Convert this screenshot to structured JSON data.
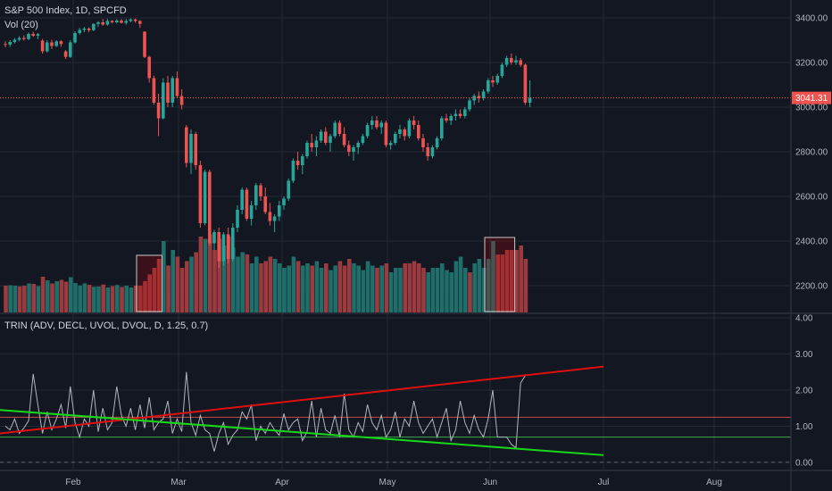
{
  "header": {
    "title": "S&P 500 Index, 1D, SPCFD",
    "vol_label": "Vol (20)"
  },
  "trin_header": "TRIN (ADV, DECL, UVOL, DVOL, D, 1.25, 0.7)",
  "last_price": "3041.31",
  "colors": {
    "up": "#26a69a",
    "down": "#ef5350",
    "up_vol": "#1f6e6a",
    "down_vol": "#9c3b3f",
    "grid": "#242832",
    "trin_line": "#b2b5be",
    "red_trend": "#e00f0f",
    "green_trend": "#18d918"
  },
  "chart_data": [
    {
      "type": "candlestick",
      "title": "S&P 500 Index, 1D, SPCFD",
      "x_ticks": [
        "Feb",
        "Mar",
        "Apr",
        "May",
        "Jun",
        "Jul",
        "Aug"
      ],
      "y_ticks": [
        "2200.00",
        "2400.00",
        "2600.00",
        "2800.00",
        "3000.00",
        "3200.00",
        "3400.00"
      ],
      "ylim": [
        2080,
        3480
      ],
      "last_price": 3041.31,
      "ohlc": [
        [
          3283,
          3295,
          3268,
          3280
        ],
        [
          3280,
          3300,
          3270,
          3292
        ],
        [
          3292,
          3310,
          3285,
          3302
        ],
        [
          3302,
          3318,
          3295,
          3310
        ],
        [
          3310,
          3322,
          3298,
          3305
        ],
        [
          3305,
          3335,
          3300,
          3328
        ],
        [
          3328,
          3338,
          3315,
          3320
        ],
        [
          3320,
          3332,
          3305,
          3327
        ],
        [
          3298,
          3305,
          3240,
          3250
        ],
        [
          3250,
          3300,
          3245,
          3290
        ],
        [
          3290,
          3302,
          3260,
          3274
        ],
        [
          3274,
          3300,
          3270,
          3295
        ],
        [
          3295,
          3300,
          3270,
          3283
        ],
        [
          3250,
          3255,
          3215,
          3225
        ],
        [
          3225,
          3300,
          3220,
          3290
        ],
        [
          3290,
          3340,
          3285,
          3332
        ],
        [
          3332,
          3355,
          3325,
          3346
        ],
        [
          3346,
          3360,
          3335,
          3352
        ],
        [
          3352,
          3358,
          3335,
          3345
        ],
        [
          3345,
          3375,
          3340,
          3373
        ],
        [
          3373,
          3385,
          3360,
          3380
        ],
        [
          3380,
          3395,
          3365,
          3370
        ],
        [
          3370,
          3395,
          3365,
          3386
        ],
        [
          3386,
          3390,
          3375,
          3380
        ],
        [
          3380,
          3395,
          3375,
          3388
        ],
        [
          3388,
          3395,
          3375,
          3378
        ],
        [
          3378,
          3395,
          3370,
          3386
        ],
        [
          3386,
          3398,
          3380,
          3393
        ],
        [
          3393,
          3397,
          3378,
          3386
        ],
        [
          3386,
          3390,
          3355,
          3373
        ],
        [
          3338,
          3340,
          3220,
          3225
        ],
        [
          3225,
          3230,
          3110,
          3130
        ],
        [
          3130,
          3140,
          3010,
          3020
        ],
        [
          3020,
          3060,
          2870,
          2950
        ],
        [
          2950,
          3130,
          2945,
          3110
        ],
        [
          3110,
          3140,
          3000,
          3020
        ],
        [
          3020,
          3140,
          3000,
          3130
        ],
        [
          3130,
          3160,
          3040,
          3050
        ],
        [
          3050,
          3080,
          2990,
          3010
        ],
        [
          2910,
          2920,
          2730,
          2750
        ],
        [
          2750,
          2900,
          2700,
          2880
        ],
        [
          2880,
          2890,
          2720,
          2740
        ],
        [
          2740,
          2760,
          2460,
          2480
        ],
        [
          2480,
          2720,
          2470,
          2710
        ],
        [
          2710,
          2720,
          2380,
          2390
        ],
        [
          2390,
          2450,
          2360,
          2440
        ],
        [
          2440,
          2460,
          2280,
          2310
        ],
        [
          2310,
          2440,
          2290,
          2430
        ],
        [
          2430,
          2460,
          2300,
          2320
        ],
        [
          2320,
          2480,
          2310,
          2460
        ],
        [
          2460,
          2560,
          2440,
          2540
        ],
        [
          2540,
          2640,
          2520,
          2630
        ],
        [
          2630,
          2640,
          2490,
          2500
        ],
        [
          2500,
          2580,
          2470,
          2560
        ],
        [
          2560,
          2660,
          2540,
          2650
        ],
        [
          2650,
          2660,
          2580,
          2600
        ],
        [
          2600,
          2640,
          2520,
          2530
        ],
        [
          2530,
          2570,
          2470,
          2490
        ],
        [
          2490,
          2520,
          2440,
          2510
        ],
        [
          2510,
          2580,
          2490,
          2560
        ],
        [
          2560,
          2600,
          2540,
          2590
        ],
        [
          2590,
          2680,
          2580,
          2670
        ],
        [
          2670,
          2770,
          2660,
          2760
        ],
        [
          2760,
          2800,
          2720,
          2740
        ],
        [
          2740,
          2790,
          2700,
          2780
        ],
        [
          2780,
          2850,
          2770,
          2840
        ],
        [
          2840,
          2880,
          2800,
          2820
        ],
        [
          2820,
          2870,
          2780,
          2850
        ],
        [
          2850,
          2900,
          2840,
          2890
        ],
        [
          2890,
          2910,
          2830,
          2840
        ],
        [
          2840,
          2880,
          2800,
          2870
        ],
        [
          2870,
          2940,
          2860,
          2930
        ],
        [
          2930,
          2940,
          2870,
          2880
        ],
        [
          2880,
          2910,
          2820,
          2830
        ],
        [
          2830,
          2850,
          2780,
          2800
        ],
        [
          2800,
          2830,
          2760,
          2820
        ],
        [
          2820,
          2850,
          2790,
          2840
        ],
        [
          2840,
          2880,
          2830,
          2870
        ],
        [
          2870,
          2930,
          2860,
          2920
        ],
        [
          2920,
          2960,
          2900,
          2940
        ],
        [
          2940,
          2960,
          2900,
          2910
        ],
        [
          2910,
          2940,
          2880,
          2930
        ],
        [
          2930,
          2940,
          2820,
          2830
        ],
        [
          2830,
          2850,
          2810,
          2840
        ],
        [
          2840,
          2890,
          2830,
          2880
        ],
        [
          2880,
          2920,
          2860,
          2900
        ],
        [
          2900,
          2910,
          2850,
          2870
        ],
        [
          2870,
          2950,
          2860,
          2940
        ],
        [
          2940,
          2960,
          2900,
          2920
        ],
        [
          2920,
          2940,
          2850,
          2860
        ],
        [
          2860,
          2880,
          2800,
          2820
        ],
        [
          2820,
          2840,
          2760,
          2780
        ],
        [
          2780,
          2830,
          2770,
          2820
        ],
        [
          2820,
          2870,
          2810,
          2860
        ],
        [
          2860,
          2960,
          2850,
          2950
        ],
        [
          2950,
          2970,
          2930,
          2940
        ],
        [
          2940,
          2970,
          2920,
          2960
        ],
        [
          2960,
          2990,
          2940,
          2970
        ],
        [
          2970,
          2990,
          2950,
          2960
        ],
        [
          2960,
          3000,
          2950,
          2990
        ],
        [
          2990,
          3040,
          2980,
          3030
        ],
        [
          3030,
          3060,
          3010,
          3050
        ],
        [
          3050,
          3070,
          3020,
          3040
        ],
        [
          3040,
          3080,
          3030,
          3070
        ],
        [
          3070,
          3130,
          3060,
          3120
        ],
        [
          3120,
          3140,
          3090,
          3110
        ],
        [
          3110,
          3150,
          3100,
          3140
        ],
        [
          3140,
          3200,
          3130,
          3190
        ],
        [
          3190,
          3230,
          3180,
          3220
        ],
        [
          3220,
          3240,
          3190,
          3200
        ],
        [
          3200,
          3230,
          3190,
          3210
        ],
        [
          3210,
          3220,
          3180,
          3190
        ],
        [
          3190,
          3195,
          3010,
          3020
        ],
        [
          3020,
          3120,
          3000,
          3041.31
        ]
      ],
      "volume": [
        [
          2200,
          0
        ],
        [
          2202,
          1
        ],
        [
          2200,
          1
        ],
        [
          2197,
          0
        ],
        [
          2200,
          0
        ],
        [
          2210,
          1
        ],
        [
          2208,
          0
        ],
        [
          2198,
          1
        ],
        [
          2240,
          0
        ],
        [
          2224,
          1
        ],
        [
          2210,
          0
        ],
        [
          2220,
          1
        ],
        [
          2226,
          0
        ],
        [
          2218,
          0
        ],
        [
          2238,
          1
        ],
        [
          2212,
          1
        ],
        [
          2201,
          1
        ],
        [
          2210,
          1
        ],
        [
          2204,
          0
        ],
        [
          2195,
          1
        ],
        [
          2196,
          1
        ],
        [
          2205,
          0
        ],
        [
          2192,
          1
        ],
        [
          2198,
          0
        ],
        [
          2203,
          1
        ],
        [
          2194,
          0
        ],
        [
          2200,
          1
        ],
        [
          2192,
          1
        ],
        [
          2200,
          0
        ],
        [
          2200,
          0
        ],
        [
          2220,
          0
        ],
        [
          2250,
          0
        ],
        [
          2280,
          0
        ],
        [
          2320,
          0
        ],
        [
          2400,
          1
        ],
        [
          2290,
          0
        ],
        [
          2360,
          1
        ],
        [
          2330,
          0
        ],
        [
          2280,
          0
        ],
        [
          2310,
          0
        ],
        [
          2330,
          1
        ],
        [
          2350,
          0
        ],
        [
          2420,
          0
        ],
        [
          2410,
          1
        ],
        [
          2430,
          0
        ],
        [
          2360,
          0
        ],
        [
          2410,
          0
        ],
        [
          2380,
          1
        ],
        [
          2420,
          0
        ],
        [
          2370,
          1
        ],
        [
          2330,
          1
        ],
        [
          2350,
          1
        ],
        [
          2340,
          0
        ],
        [
          2300,
          1
        ],
        [
          2330,
          1
        ],
        [
          2300,
          0
        ],
        [
          2310,
          0
        ],
        [
          2330,
          0
        ],
        [
          2320,
          1
        ],
        [
          2300,
          1
        ],
        [
          2280,
          1
        ],
        [
          2290,
          1
        ],
        [
          2330,
          1
        ],
        [
          2310,
          0
        ],
        [
          2290,
          1
        ],
        [
          2300,
          1
        ],
        [
          2290,
          0
        ],
        [
          2310,
          1
        ],
        [
          2280,
          1
        ],
        [
          2300,
          0
        ],
        [
          2270,
          1
        ],
        [
          2290,
          1
        ],
        [
          2310,
          0
        ],
        [
          2290,
          0
        ],
        [
          2320,
          0
        ],
        [
          2300,
          1
        ],
        [
          2290,
          1
        ],
        [
          2270,
          1
        ],
        [
          2310,
          1
        ],
        [
          2290,
          1
        ],
        [
          2280,
          0
        ],
        [
          2290,
          1
        ],
        [
          2300,
          0
        ],
        [
          2260,
          1
        ],
        [
          2280,
          1
        ],
        [
          2280,
          1
        ],
        [
          2300,
          0
        ],
        [
          2300,
          0
        ],
        [
          2310,
          0
        ],
        [
          2300,
          0
        ],
        [
          2280,
          0
        ],
        [
          2260,
          1
        ],
        [
          2280,
          1
        ],
        [
          2280,
          1
        ],
        [
          2300,
          1
        ],
        [
          2270,
          1
        ],
        [
          2260,
          1
        ],
        [
          2310,
          1
        ],
        [
          2330,
          1
        ],
        [
          2280,
          1
        ],
        [
          2260,
          0
        ],
        [
          2300,
          1
        ],
        [
          2320,
          1
        ],
        [
          2280,
          1
        ],
        [
          2320,
          1
        ],
        [
          2400,
          1
        ],
        [
          2340,
          0
        ],
        [
          2340,
          0
        ],
        [
          2360,
          0
        ],
        [
          2360,
          0
        ],
        [
          2360,
          0
        ],
        [
          2380,
          0
        ],
        [
          2320,
          0
        ]
      ],
      "volume_highlights": [
        [
          29,
          33
        ],
        [
          104,
          109
        ]
      ]
    },
    {
      "type": "line",
      "title": "TRIN (ADV, DECL, UVOL, DVOL, D, 1.25, 0.7)",
      "y_ticks": [
        "0.00",
        "1.00",
        "2.00",
        "3.00",
        "4.00"
      ],
      "ylim": [
        -0.2,
        4.1
      ],
      "levels": [
        1.25,
        0.7
      ],
      "x": [
        0,
        1,
        2,
        3,
        4,
        5,
        6,
        7,
        8,
        9,
        10,
        11,
        12,
        13,
        14,
        15,
        16,
        17,
        18,
        19,
        20,
        21,
        22,
        23,
        24,
        25,
        26,
        27,
        28,
        29,
        30,
        31,
        32,
        33,
        34,
        35,
        36,
        37,
        38,
        39,
        40,
        41,
        42,
        43,
        44,
        45,
        46,
        47,
        48,
        49,
        50,
        51,
        52,
        53,
        54,
        55,
        56,
        57,
        58,
        59,
        60,
        61,
        62,
        63,
        64,
        65,
        66,
        67,
        68,
        69,
        70,
        71,
        72,
        73,
        74,
        75,
        76,
        77,
        78,
        79,
        80,
        81,
        82,
        83,
        84,
        85,
        86,
        87,
        88,
        89,
        90,
        91,
        92,
        93,
        94,
        95,
        96,
        97,
        98,
        99,
        100,
        101,
        102,
        103,
        104,
        105,
        106,
        107,
        108,
        109,
        110,
        111,
        112
      ],
      "values": [
        1.0,
        0.9,
        1.2,
        0.8,
        0.95,
        1.15,
        2.45,
        1.6,
        0.8,
        1.4,
        0.9,
        1.2,
        1.6,
        0.95,
        2.1,
        1.1,
        0.7,
        1.2,
        1.0,
        2.0,
        0.85,
        1.5,
        0.9,
        1.1,
        2.1,
        1.3,
        1.0,
        1.5,
        0.9,
        1.6,
        0.95,
        1.8,
        0.9,
        1.1,
        1.2,
        1.7,
        0.8,
        1.2,
        0.85,
        2.5,
        1.1,
        0.75,
        1.3,
        0.9,
        0.8,
        0.3,
        0.8,
        1.1,
        0.5,
        0.75,
        0.9,
        1.4,
        1.2,
        1.6,
        0.6,
        1.0,
        0.8,
        1.1,
        0.9,
        0.75,
        1.35,
        0.9,
        1.1,
        1.2,
        0.6,
        0.85,
        1.7,
        0.7,
        1.5,
        0.9,
        0.8,
        1.3,
        0.7,
        1.9,
        0.9,
        0.7,
        1.1,
        0.85,
        1.6,
        1.1,
        0.9,
        1.3,
        0.7,
        0.9,
        1.4,
        0.7,
        1.2,
        1.0,
        1.7,
        1.1,
        0.8,
        1.0,
        1.2,
        0.7,
        1.1,
        1.5,
        0.6,
        0.9,
        1.7,
        1.1,
        0.8,
        1.3,
        0.9,
        0.7,
        1.2,
        2.0,
        0.7,
        0.7,
        0.7,
        0.5,
        0.4,
        2.2,
        2.4
      ]
    }
  ]
}
